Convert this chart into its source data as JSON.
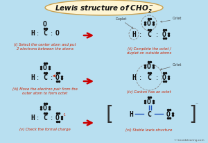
{
  "title": "Lewis structure of CHO₂⁻",
  "bg_color": "#b8dff0",
  "title_bg": "#fef5d4",
  "title_border": "#c8a050",
  "arrow_color": "#cc0000",
  "text_black": "#111111",
  "text_red": "#cc2200",
  "text_gray": "#555555",
  "bond_blue": "#2255bb",
  "watermark": "© knordslearing.com",
  "step_labels": [
    "(i) Select the center atom and put\n2 electrons between the atoms",
    "(ii) Complete the octet /\nduplet on outside atoms",
    "(iii) Move the electron pair from the\nouter atom to form octet",
    "(iv) Carbon has an octet",
    "(v) Check the formal charge",
    "(vi) Stable lewis structure"
  ],
  "duplet_label": "Duplet",
  "octet_label": "Octet"
}
